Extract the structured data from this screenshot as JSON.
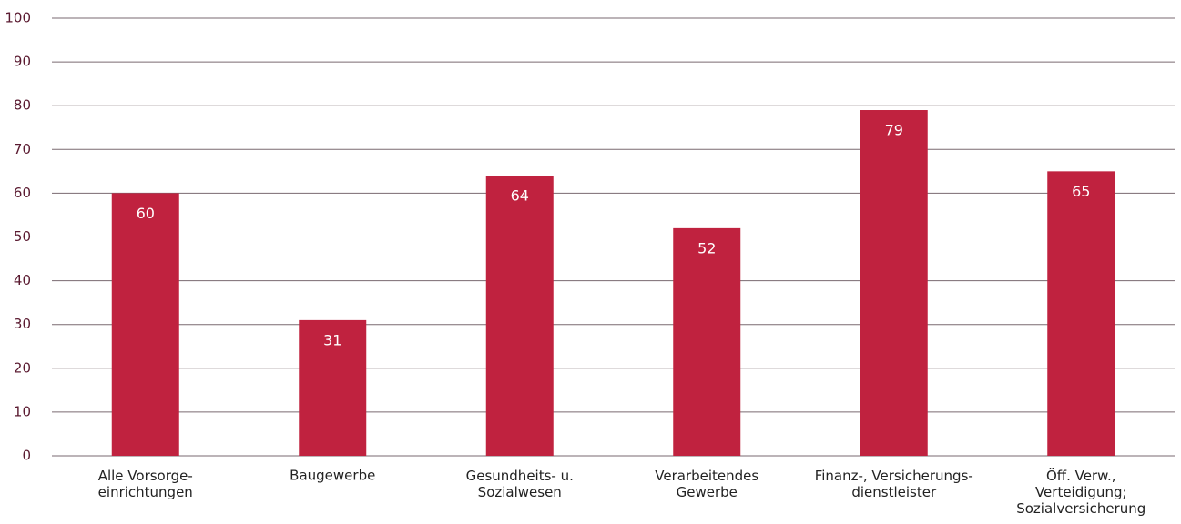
{
  "chart_data": {
    "type": "bar",
    "categories": [
      "Alle Vorsorge-\neinrichtungen",
      "Baugewerbe",
      "Gesundheits- u.\nSozialwesen",
      "Verarbeitendes\nGewerbe",
      "Finanz-, Versicherungs-\ndienstleister",
      "Öff. Verw.,\nVerteidigung;\nSozialversicherung"
    ],
    "values": [
      60,
      31,
      64,
      52,
      79,
      65
    ],
    "color": "#c0223f",
    "ylim": [
      0,
      100
    ],
    "yticks": [
      0,
      10,
      20,
      30,
      40,
      50,
      60,
      70,
      80,
      90,
      100
    ],
    "grid": true
  }
}
